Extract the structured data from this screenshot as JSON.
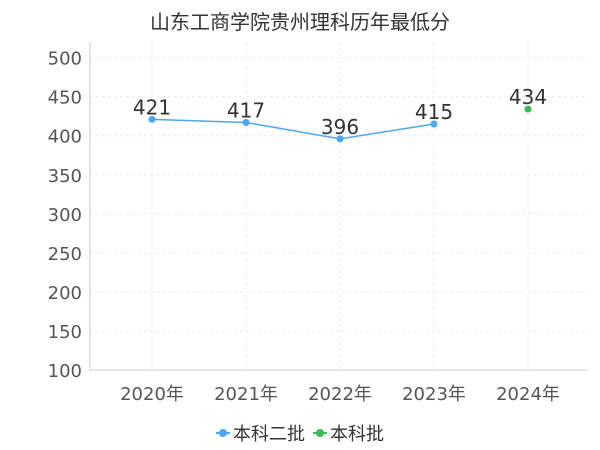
{
  "chart_data": {
    "type": "line",
    "title": "山东工商学院贵州理科历年最低分",
    "categories": [
      "2020年",
      "2021年",
      "2022年",
      "2023年",
      "2024年"
    ],
    "series": [
      {
        "name": "本科二批",
        "values": [
          421,
          417,
          396,
          415,
          null
        ],
        "color": "#4da6f5"
      },
      {
        "name": "本科批",
        "values": [
          null,
          null,
          null,
          null,
          434
        ],
        "color": "#3cb95a"
      }
    ],
    "ylim": [
      100,
      520
    ],
    "yticks": [
      "100",
      "150",
      "200",
      "250",
      "300",
      "350",
      "400",
      "450",
      "500"
    ],
    "grid": true,
    "legend_position": "bottom-center"
  }
}
